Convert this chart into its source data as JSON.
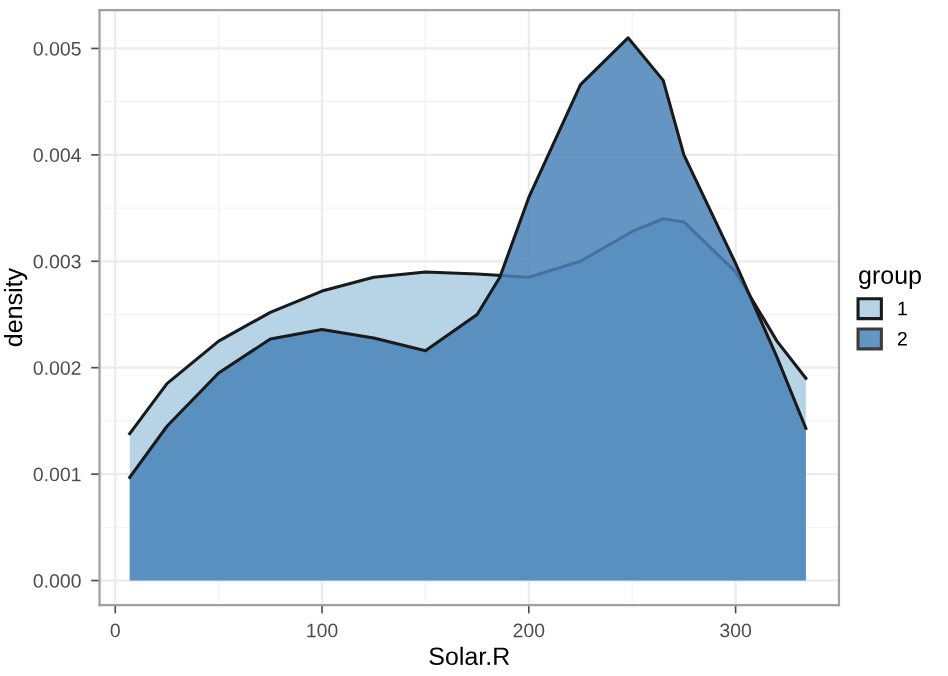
{
  "chart_data": {
    "type": "area",
    "xlabel": "Solar.R",
    "ylabel": "density",
    "legend_title": "group",
    "legend": "right",
    "grid": true,
    "xlim": [
      -7.6,
      350
    ],
    "xticks": [
      0,
      100,
      200,
      300
    ],
    "ylim": [
      -0.00023,
      0.00536
    ],
    "yticks": [
      {
        "value": 0,
        "label": "0.000"
      },
      {
        "value": 0.001,
        "label": "0.001"
      },
      {
        "value": 0.002,
        "label": "0.002"
      },
      {
        "value": 0.003,
        "label": "0.003"
      },
      {
        "value": 0.004,
        "label": "0.004"
      },
      {
        "value": 0.005,
        "label": "0.005"
      }
    ],
    "series": [
      {
        "name": "1",
        "color": "#b6d4e6",
        "x": [
          7,
          25,
          50,
          75,
          100,
          125,
          150,
          175,
          200,
          225,
          250,
          265,
          275,
          300,
          320,
          334
        ],
        "values": [
          0.00138,
          0.00185,
          0.00225,
          0.00252,
          0.00272,
          0.00285,
          0.0029,
          0.00288,
          0.00285,
          0.003,
          0.00328,
          0.0034,
          0.00337,
          0.0029,
          0.00225,
          0.0019
        ]
      },
      {
        "name": "2",
        "color": "#4a84b9",
        "x": [
          7,
          25,
          50,
          75,
          100,
          125,
          150,
          175,
          186,
          200,
          225,
          248,
          265,
          275,
          300,
          320,
          334
        ],
        "values": [
          0.00097,
          0.00145,
          0.00195,
          0.00227,
          0.00236,
          0.00228,
          0.00216,
          0.0025,
          0.00285,
          0.0036,
          0.00466,
          0.0051,
          0.0047,
          0.004,
          0.00298,
          0.0021,
          0.00143
        ]
      }
    ]
  }
}
